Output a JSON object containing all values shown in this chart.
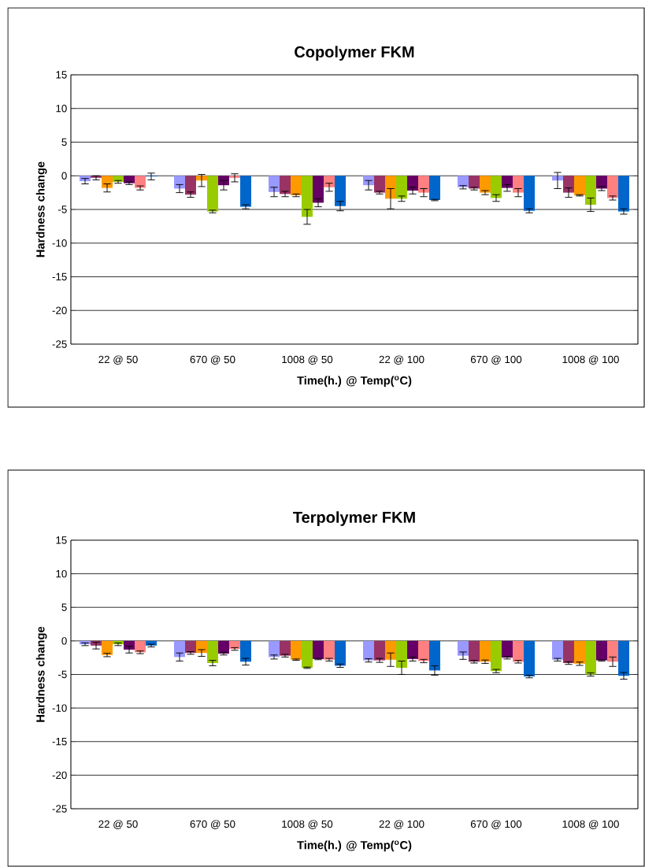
{
  "chart_data": [
    {
      "type": "bar",
      "title": "Copolymer FKM",
      "xlabel": "Time(h.) @ Temp($^{o}$C)",
      "ylabel": "Hardness change",
      "categories": [
        "22 @ 50",
        "670 @ 50",
        "1008 @ 50",
        "22 @ 100",
        "670 @ 100",
        "1008 @ 100"
      ],
      "ylim": [
        -25,
        15
      ],
      "yticks": [
        -25,
        -20,
        -15,
        -10,
        -5,
        0,
        5,
        10,
        15
      ],
      "grid": "y",
      "series": [
        {
          "color": "#9999ff",
          "values": [
            -0.8,
            -1.9,
            -2.4,
            -1.4,
            -1.7,
            -0.7
          ],
          "errors": [
            0.4,
            0.6,
            0.7,
            0.7,
            0.25,
            1.2
          ]
        },
        {
          "color": "#993366",
          "values": [
            -0.3,
            -2.8,
            -2.7,
            -2.5,
            -1.9,
            -2.5
          ],
          "errors": [
            0.3,
            0.4,
            0.4,
            0.2,
            0.2,
            0.7
          ]
        },
        {
          "color": "#ff9900",
          "values": [
            -1.8,
            -0.7,
            -2.9,
            -3.4,
            -2.5,
            -2.9
          ],
          "errors": [
            0.6,
            0.9,
            0.2,
            1.5,
            0.3,
            0.1
          ]
        },
        {
          "color": "#99cc00",
          "values": [
            -0.9,
            -5.3,
            -6.1,
            -3.4,
            -3.3,
            -4.3
          ],
          "errors": [
            0.2,
            0.2,
            1.1,
            0.4,
            0.5,
            1.0
          ]
        },
        {
          "color": "#660066",
          "values": [
            -1.1,
            -1.4,
            -4.0,
            -2.2,
            -1.8,
            -1.9
          ],
          "errors": [
            0.2,
            0.7,
            0.6,
            0.5,
            0.5,
            0.3
          ]
        },
        {
          "color": "#ff8080",
          "values": [
            -1.8,
            -0.3,
            -1.7,
            -2.5,
            -2.5,
            -3.3
          ],
          "errors": [
            0.3,
            0.6,
            0.6,
            0.6,
            0.6,
            0.3
          ]
        },
        {
          "color": "#0066cc",
          "values": [
            -0.1,
            -4.6,
            -4.5,
            -3.6,
            -5.2,
            -5.3
          ],
          "errors": [
            0.5,
            0.3,
            0.7,
            0.1,
            0.3,
            0.4
          ]
        }
      ]
    },
    {
      "type": "bar",
      "title": "Terpolymer FKM",
      "xlabel": "Time(h.) @ Temp($^{o}$C)",
      "ylabel": "Hardness change",
      "categories": [
        "22 @ 50",
        "670 @ 50",
        "1008 @ 50",
        "22 @ 100",
        "670 @ 100",
        "1008 @ 100"
      ],
      "ylim": [
        -25,
        15
      ],
      "yticks": [
        -25,
        -20,
        -15,
        -10,
        -5,
        0,
        5,
        10,
        15
      ],
      "grid": "y",
      "series": [
        {
          "color": "#9999ff",
          "values": [
            -0.5,
            -2.4,
            -2.4,
            -2.9,
            -2.2,
            -2.8
          ],
          "errors": [
            0.2,
            0.6,
            0.3,
            0.25,
            0.55,
            0.2
          ]
        },
        {
          "color": "#993366",
          "values": [
            -0.7,
            -1.8,
            -2.2,
            -2.9,
            -3.1,
            -3.3
          ],
          "errors": [
            0.5,
            0.2,
            0.2,
            0.3,
            0.2,
            0.2
          ]
        },
        {
          "color": "#ff9900",
          "values": [
            -2.1,
            -1.8,
            -2.8,
            -2.8,
            -3.1,
            -3.4
          ],
          "errors": [
            0.25,
            0.5,
            0.1,
            1.0,
            0.25,
            0.25
          ]
        },
        {
          "color": "#99cc00",
          "values": [
            -0.5,
            -3.3,
            -4.0,
            -4.0,
            -4.5,
            -5.0
          ],
          "errors": [
            0.2,
            0.4,
            0.1,
            1.0,
            0.25,
            0.25
          ]
        },
        {
          "color": "#660066",
          "values": [
            -1.3,
            -1.9,
            -2.7,
            -2.7,
            -2.5,
            -2.9
          ],
          "errors": [
            0.5,
            0.2,
            0.1,
            0.3,
            0.2,
            0.1
          ]
        },
        {
          "color": "#ff8080",
          "values": [
            -1.7,
            -1.2,
            -2.8,
            -3.0,
            -3.1,
            -3.1
          ],
          "errors": [
            0.2,
            0.2,
            0.2,
            0.25,
            0.2,
            0.7
          ]
        },
        {
          "color": "#0066cc",
          "values": [
            -0.7,
            -3.1,
            -3.7,
            -4.4,
            -5.3,
            -5.2
          ],
          "errors": [
            0.2,
            0.5,
            0.25,
            0.7,
            0.2,
            0.5
          ]
        }
      ]
    }
  ]
}
